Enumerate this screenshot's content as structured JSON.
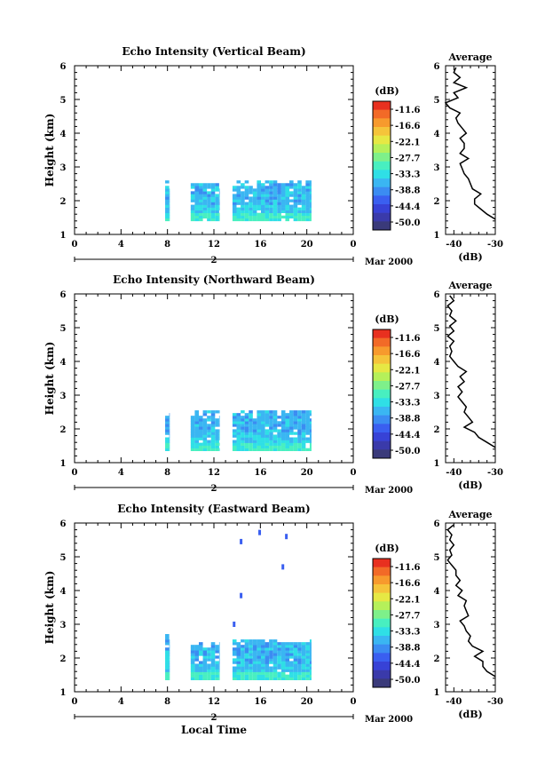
{
  "figure": {
    "date_label": "Mar 2000",
    "day_label": "2",
    "xlabel": "Local Time",
    "ylabel": "Height (km)",
    "colorbar_unit": "(dB)",
    "colorbar_ticks": [
      "-11.6",
      "-16.6",
      "-22.1",
      "-27.7",
      "-33.3",
      "-38.8",
      "-44.4",
      "-50.0"
    ],
    "colorbar_colors": [
      "#e8301f",
      "#f26a27",
      "#f79a2d",
      "#f5c43a",
      "#e6e844",
      "#b5f05a",
      "#7ef08a",
      "#48efc0",
      "#2fdfe6",
      "#3ab6f2",
      "#3b8cf2",
      "#3a5ff0",
      "#3742d6",
      "#3a3aaa",
      "#3a3a7a"
    ]
  },
  "chart_data": [
    {
      "type": "heatmap",
      "title": "Echo Intensity (Vertical Beam)",
      "xlabel": "",
      "ylabel": "Height (km)",
      "xticks": [
        "0",
        "4",
        "8",
        "12",
        "16",
        "20",
        "0"
      ],
      "yticks": [
        "1",
        "2",
        "3",
        "4",
        "5",
        "6"
      ],
      "xlim": [
        0,
        24
      ],
      "ylim": [
        1,
        6
      ],
      "echo_blocks": [
        {
          "t0": 7.8,
          "t1": 8.2,
          "z0": 1.4,
          "z1": 2.55
        },
        {
          "t0": 10.0,
          "t1": 12.5,
          "z0": 1.4,
          "z1": 2.5
        },
        {
          "t0": 13.6,
          "t1": 20.4,
          "z0": 1.4,
          "z1": 2.55
        }
      ],
      "isolated_echoes": [],
      "average_profile": {
        "title": "Average",
        "xlabel": "(dB)",
        "xticks": [
          "-40",
          "-30"
        ],
        "xlim": [
          -42,
          -30
        ],
        "yticks": [
          "1",
          "2",
          "3",
          "4",
          "5",
          "6"
        ],
        "height": [
          1.45,
          1.6,
          1.75,
          1.9,
          2.05,
          2.2,
          2.35,
          2.5,
          2.65,
          2.8,
          2.95,
          3.1,
          3.25,
          3.4,
          3.55,
          3.7,
          3.85,
          4.0,
          4.15,
          4.3,
          4.45,
          4.6,
          4.75,
          4.9,
          5.05,
          5.2,
          5.35,
          5.5,
          5.65,
          5.8,
          5.95
        ],
        "value": [
          -30.0,
          -32.0,
          -33.5,
          -35.0,
          -35.0,
          -33.5,
          -35.5,
          -36.0,
          -36.5,
          -37.5,
          -38.0,
          -38.5,
          -36.5,
          -38.5,
          -37.5,
          -37.5,
          -38.5,
          -37.0,
          -38.0,
          -39.0,
          -39.5,
          -38.5,
          -41.0,
          -42.0,
          -39.0,
          -40.0,
          -37.0,
          -40.0,
          -38.5,
          -40.0,
          -39.5
        ]
      }
    },
    {
      "type": "heatmap",
      "title": "Echo Intensity (Northward Beam)",
      "xlabel": "",
      "ylabel": "Height (km)",
      "xticks": [
        "0",
        "4",
        "8",
        "12",
        "16",
        "20",
        "0"
      ],
      "yticks": [
        "1",
        "2",
        "3",
        "4",
        "5",
        "6"
      ],
      "xlim": [
        0,
        24
      ],
      "ylim": [
        1,
        6
      ],
      "echo_blocks": [
        {
          "t0": 7.8,
          "t1": 8.2,
          "z0": 1.35,
          "z1": 2.4
        },
        {
          "t0": 10.0,
          "t1": 12.5,
          "z0": 1.35,
          "z1": 2.5
        },
        {
          "t0": 13.6,
          "t1": 20.4,
          "z0": 1.35,
          "z1": 2.55
        }
      ],
      "isolated_echoes": [],
      "average_profile": {
        "title": "Average",
        "xlabel": "(dB)",
        "xticks": [
          "-40",
          "-30"
        ],
        "xlim": [
          -42,
          -30
        ],
        "yticks": [
          "1",
          "2",
          "3",
          "4",
          "5",
          "6"
        ],
        "height": [
          1.45,
          1.6,
          1.75,
          1.9,
          2.05,
          2.2,
          2.35,
          2.5,
          2.65,
          2.8,
          2.95,
          3.1,
          3.25,
          3.4,
          3.55,
          3.7,
          3.85,
          4.0,
          4.15,
          4.3,
          4.45,
          4.6,
          4.75,
          4.9,
          5.05,
          5.2,
          5.35,
          5.5,
          5.65,
          5.8,
          5.95
        ],
        "value": [
          -30.0,
          -32.0,
          -34.0,
          -35.0,
          -37.5,
          -35.5,
          -36.5,
          -37.5,
          -37.0,
          -38.0,
          -39.0,
          -38.0,
          -39.0,
          -37.5,
          -38.5,
          -37.0,
          -39.0,
          -40.0,
          -41.0,
          -40.5,
          -41.0,
          -40.0,
          -41.5,
          -40.0,
          -41.0,
          -39.5,
          -41.0,
          -40.5,
          -41.5,
          -40.0,
          -41.0
        ]
      }
    },
    {
      "type": "heatmap",
      "title": "Echo Intensity (Eastward Beam)",
      "xlabel": "Local Time",
      "ylabel": "Height (km)",
      "xticks": [
        "0",
        "4",
        "8",
        "12",
        "16",
        "20",
        "0"
      ],
      "yticks": [
        "1",
        "2",
        "3",
        "4",
        "5",
        "6"
      ],
      "xlim": [
        0,
        24
      ],
      "ylim": [
        1,
        6
      ],
      "echo_blocks": [
        {
          "t0": 7.8,
          "t1": 8.2,
          "z0": 1.35,
          "z1": 2.65
        },
        {
          "t0": 10.0,
          "t1": 12.5,
          "z0": 1.35,
          "z1": 2.45
        },
        {
          "t0": 13.6,
          "t1": 20.4,
          "z0": 1.35,
          "z1": 2.55
        }
      ],
      "isolated_echoes": [
        {
          "t": 14.3,
          "z": 5.45
        },
        {
          "t": 15.9,
          "z": 5.72
        },
        {
          "t": 18.2,
          "z": 5.6
        },
        {
          "t": 17.9,
          "z": 4.7
        },
        {
          "t": 14.3,
          "z": 3.85
        },
        {
          "t": 13.7,
          "z": 3.0
        }
      ],
      "average_profile": {
        "title": "Average",
        "xlabel": "(dB)",
        "xticks": [
          "-40",
          "-30"
        ],
        "xlim": [
          -42,
          -30
        ],
        "yticks": [
          "1",
          "2",
          "3",
          "4",
          "5",
          "6"
        ],
        "height": [
          1.45,
          1.6,
          1.75,
          1.9,
          2.05,
          2.2,
          2.35,
          2.5,
          2.65,
          2.8,
          2.95,
          3.1,
          3.25,
          3.4,
          3.55,
          3.7,
          3.85,
          4.0,
          4.15,
          4.3,
          4.45,
          4.6,
          4.75,
          4.9,
          5.05,
          5.2,
          5.35,
          5.5,
          5.65,
          5.8,
          5.95
        ],
        "value": [
          -30.0,
          -32.0,
          -33.0,
          -33.0,
          -35.0,
          -33.0,
          -35.5,
          -36.5,
          -36.0,
          -37.0,
          -37.5,
          -38.5,
          -36.5,
          -37.0,
          -37.5,
          -37.0,
          -39.0,
          -38.0,
          -39.5,
          -38.5,
          -39.5,
          -39.5,
          -40.5,
          -41.5,
          -40.5,
          -41.0,
          -40.0,
          -41.0,
          -40.5,
          -41.5,
          -40.0
        ]
      }
    }
  ]
}
